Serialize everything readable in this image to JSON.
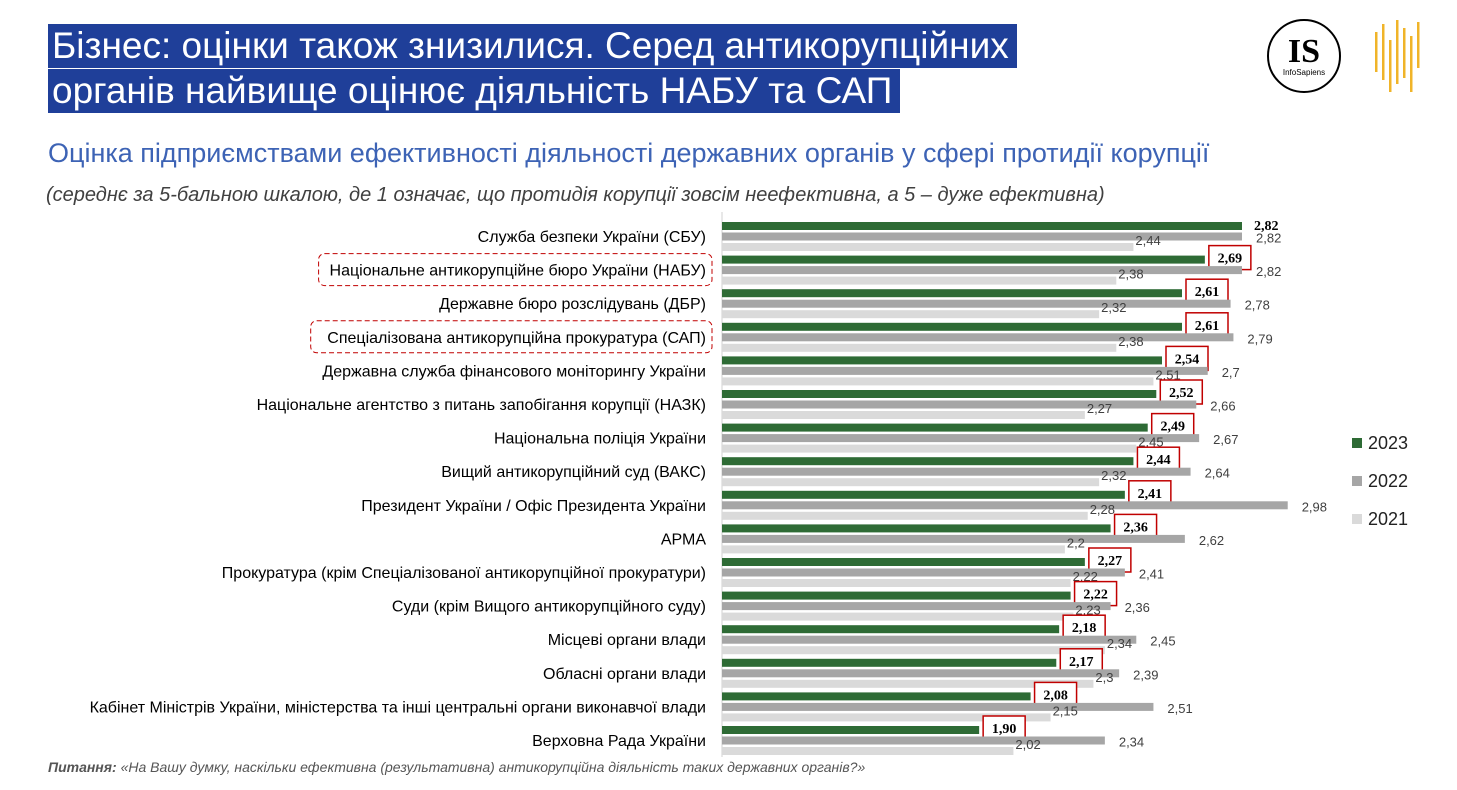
{
  "title": {
    "line1": "Бізнес: оцінки також знизилися. Серед антикорупційних",
    "line2": "органів найвище оцінює діяльність НАБУ та САП"
  },
  "subtitle": "Оцінка підприємствами ефективності діяльності державних органів у сфері протидії корупції",
  "note": "(середнє за 5-бальною шкалою, де 1 означає, що протидія корупції зовсім неефективна, а 5 – дуже ефективна)",
  "footer": {
    "label": "Питання:",
    "text": "«На Вашу думку, наскільки ефективна (результативна) антикорупційна діяльність таких державних органів?»"
  },
  "logo": {
    "text": "IS",
    "subtext": "InfoSapiens"
  },
  "colors": {
    "s2023": "#2e6b35",
    "s2022": "#a6a6a6",
    "s2021": "#dadada",
    "highlight_box": "#c00000",
    "title_bg": "#1f3f99",
    "subtitle": "#3d63b5"
  },
  "legend": [
    {
      "label": "2023",
      "color": "#2e6b35"
    },
    {
      "label": "2022",
      "color": "#a6a6a6"
    },
    {
      "label": "2021",
      "color": "#dadada"
    }
  ],
  "chart_data": {
    "type": "bar",
    "orientation": "horizontal",
    "categories": [
      "Служба безпеки України (СБУ)",
      "Національне антикорупційне бюро України (НАБУ)",
      "Державне бюро розслідувань (ДБР)",
      "Спеціалізована антикорупційна прокуратура (САП)",
      "Державна служба фінансового моніторингу України",
      "Національне агентство з питань запобігання корупції (НАЗК)",
      "Національна поліція України",
      "Вищий антикорупційний суд (ВАКС)",
      "Президент України / Офіс Президента України",
      "АРМА",
      "Прокуратура (крім Спеціалізованої антикорупційної прокуратури)",
      "Суди (крім Вищого антикорупційного суду)",
      "Місцеві органи влади",
      "Обласні органи влади",
      "Кабінет Міністрів України, міністерства та інші центральні органи виконавчої влади",
      "Верховна Рада України"
    ],
    "highlighted_categories": [
      1,
      3
    ],
    "series": [
      {
        "name": "2023",
        "values": [
          2.82,
          2.69,
          2.61,
          2.61,
          2.54,
          2.52,
          2.49,
          2.44,
          2.41,
          2.36,
          2.27,
          2.22,
          2.18,
          2.17,
          2.08,
          1.9
        ],
        "labels": [
          "2,82",
          "2,69",
          "2,61",
          "2,61",
          "2,54",
          "2,52",
          "2,49",
          "2,44",
          "2,41",
          "2,36",
          "2,27",
          "2,22",
          "2,18",
          "2,17",
          "2,08",
          "1,90"
        ]
      },
      {
        "name": "2022",
        "values": [
          2.82,
          2.82,
          2.78,
          2.79,
          2.7,
          2.66,
          2.67,
          2.64,
          2.98,
          2.62,
          2.41,
          2.36,
          2.45,
          2.39,
          2.51,
          2.34
        ],
        "labels": [
          "2,82",
          "2,82",
          "2,78",
          "2,79",
          "2,7",
          "2,66",
          "2,67",
          "2,64",
          "2,98",
          "2,62",
          "2,41",
          "2,36",
          "2,45",
          "2,39",
          "2,51",
          "2,34"
        ]
      },
      {
        "name": "2021",
        "values": [
          2.44,
          2.38,
          2.32,
          2.38,
          2.51,
          2.27,
          2.45,
          2.32,
          2.28,
          2.2,
          2.22,
          2.23,
          2.34,
          2.3,
          2.15,
          2.02
        ],
        "labels": [
          "2,44",
          "2,38",
          "2,32",
          "2,38",
          "2,51",
          "2,27",
          "2,45",
          "2,32",
          "2,28",
          "2,2",
          "2,22",
          "2,23",
          "2,34",
          "2,3",
          "2,15",
          "2,02"
        ]
      }
    ]
  }
}
